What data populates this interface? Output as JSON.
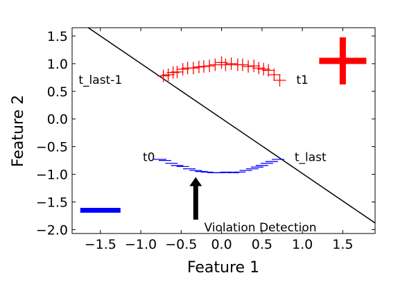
{
  "chart_data": {
    "type": "scatter",
    "title": "",
    "xlabel": "Feature 1",
    "ylabel": "Feature 2",
    "xlim": [
      -1.85,
      1.9
    ],
    "ylim": [
      -2.07,
      1.65
    ],
    "xticks": [
      -1.5,
      -1.0,
      -0.5,
      0.0,
      0.5,
      1.0,
      1.5
    ],
    "xtick_labels": [
      "−1.5",
      "−1.0",
      "−0.5",
      "0.0",
      "0.5",
      "1.0",
      "1.5"
    ],
    "yticks": [
      1.5,
      1.0,
      0.5,
      0.0,
      -0.5,
      -1.0,
      -1.5,
      -2.0
    ],
    "ytick_labels": [
      "1.5",
      "1.0",
      "0.5",
      "0.0",
      "−0.5",
      "−1.0",
      "−1.5",
      "−2.0"
    ],
    "grid": false,
    "series": [
      {
        "color": "#ff0000",
        "marker": "plus",
        "x": [
          -0.72,
          -0.66,
          -0.6,
          -0.55,
          -0.48,
          -0.42,
          -0.35,
          -0.28,
          -0.22,
          -0.15,
          -0.08,
          0.0,
          0.05,
          0.12,
          0.2,
          0.26,
          0.33,
          0.4,
          0.46,
          0.52,
          0.58,
          0.65,
          0.72
        ],
        "y": [
          0.78,
          0.8,
          0.84,
          0.85,
          0.9,
          0.92,
          0.92,
          0.94,
          0.95,
          0.96,
          0.98,
          1.02,
          0.98,
          1.0,
          0.98,
          0.98,
          0.95,
          0.96,
          0.92,
          0.9,
          0.88,
          0.8,
          0.7
        ]
      },
      {
        "color": "#0000ff",
        "marker": "hline",
        "x": [
          -0.76,
          -0.7,
          -0.62,
          -0.55,
          -0.48,
          -0.4,
          -0.32,
          -0.25,
          -0.18,
          -0.1,
          -0.02,
          0.06,
          0.14,
          0.22,
          0.3,
          0.38,
          0.44,
          0.5,
          0.56,
          0.62,
          0.7
        ],
        "y": [
          -0.73,
          -0.75,
          -0.8,
          -0.84,
          -0.86,
          -0.9,
          -0.93,
          -0.95,
          -0.96,
          -0.97,
          -0.97,
          -0.96,
          -0.97,
          -0.96,
          -0.93,
          -0.9,
          -0.87,
          -0.84,
          -0.8,
          -0.77,
          -0.73
        ]
      }
    ],
    "decision_line": {
      "color": "#000000",
      "points": [
        [
          -1.65,
          1.65
        ],
        [
          1.9,
          -1.88
        ]
      ]
    },
    "legend_markers": [
      {
        "marker": "plus",
        "color": "#ff0000",
        "x": 1.5,
        "y": 1.05
      },
      {
        "marker": "hline",
        "color": "#0000ff",
        "x": -1.5,
        "y": -1.65
      }
    ],
    "annotations": [
      {
        "text": "t_last-1",
        "x": -1.5,
        "y": 0.7,
        "anchor": "middle"
      },
      {
        "text": "t1",
        "x": 1.0,
        "y": 0.7,
        "anchor": "middle"
      },
      {
        "text": "t0",
        "x": -0.9,
        "y": -0.7,
        "anchor": "middle"
      },
      {
        "text": "t_last",
        "x": 1.1,
        "y": -0.7,
        "anchor": "middle"
      },
      {
        "text": "Violation Detection",
        "x": 0.48,
        "y": -1.97,
        "anchor": "middle"
      }
    ],
    "arrow": {
      "from": [
        -0.32,
        -1.82
      ],
      "to": [
        -0.32,
        -1.05
      ],
      "color": "#000000"
    }
  }
}
